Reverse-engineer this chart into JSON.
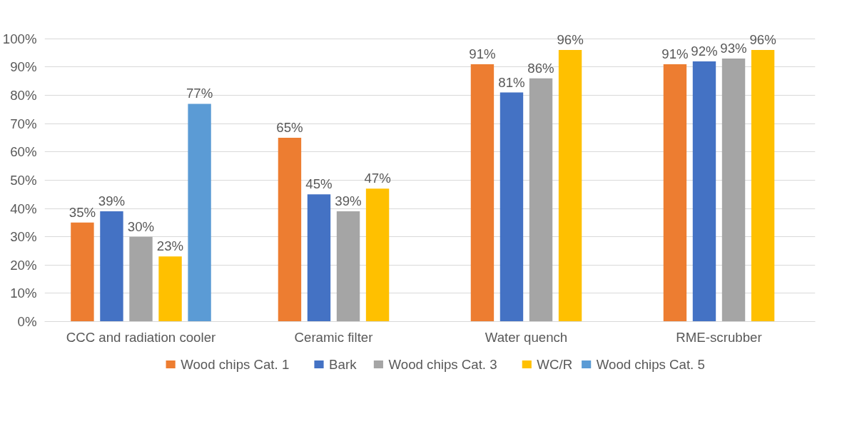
{
  "chart_data": {
    "type": "bar",
    "categories": [
      "CCC and radiation cooler",
      "Ceramic filter",
      "Water quench",
      "RME-scrubber"
    ],
    "series": [
      {
        "name": "Wood chips Cat. 1",
        "color": "#ed7d31",
        "values": [
          35,
          65,
          91,
          91
        ],
        "value_labels": [
          "35%",
          "65%",
          "91%",
          "91%"
        ]
      },
      {
        "name": "Bark",
        "color": "#4472c4",
        "values": [
          39,
          45,
          81,
          92
        ],
        "value_labels": [
          "39%",
          "45%",
          "81%",
          "92%"
        ]
      },
      {
        "name": "Wood chips Cat. 3",
        "color": "#a5a5a5",
        "values": [
          30,
          39,
          86,
          93
        ],
        "value_labels": [
          "30%",
          "39%",
          "86%",
          "93%"
        ]
      },
      {
        "name": "WC/R",
        "color": "#ffc000",
        "values": [
          23,
          47,
          96,
          96
        ],
        "value_labels": [
          "23%",
          "47%",
          "96%",
          "96%"
        ]
      },
      {
        "name": "Wood chips Cat. 5",
        "color": "#5b9bd5",
        "values": [
          77,
          null,
          null,
          null
        ],
        "value_labels": [
          "77%",
          null,
          null,
          null
        ]
      }
    ],
    "ylim": [
      0,
      100
    ],
    "yticks": [
      {
        "value": 0,
        "label": "0%"
      },
      {
        "value": 10,
        "label": "10%"
      },
      {
        "value": 20,
        "label": "20%"
      },
      {
        "value": 30,
        "label": "30%"
      },
      {
        "value": 40,
        "label": "40%"
      },
      {
        "value": 50,
        "label": "50%"
      },
      {
        "value": 60,
        "label": "60%"
      },
      {
        "value": 70,
        "label": "70%"
      },
      {
        "value": 80,
        "label": "80%"
      },
      {
        "value": 90,
        "label": "90%"
      },
      {
        "value": 100,
        "label": "100%"
      }
    ],
    "grid": "y",
    "legend": "bottom"
  }
}
